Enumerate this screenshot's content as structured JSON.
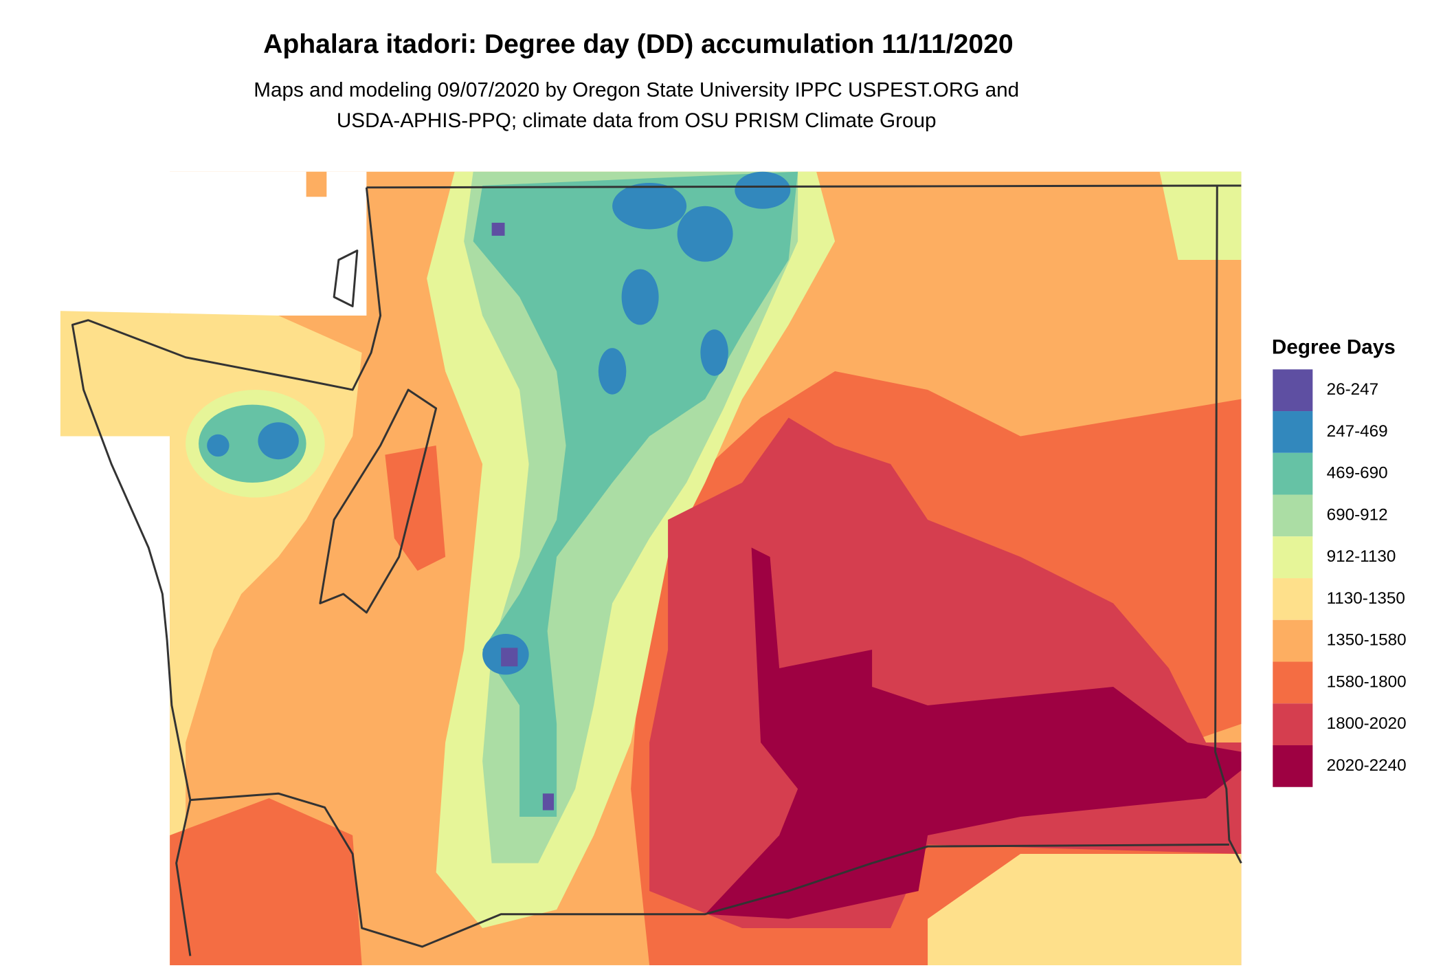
{
  "header": {
    "title": "Aphalara itadori: Degree day (DD) accumulation 11/11/2020",
    "subtitle": [
      "Maps and modeling 09/07/2020 by Oregon State University IPPC USPEST.ORG and",
      "USDA-APHIS-PPQ; climate data from OSU PRISM Climate Group"
    ]
  },
  "legend": {
    "title": "Degree Days",
    "items": [
      {
        "label": "26-247",
        "color": "#5e4fa2"
      },
      {
        "label": "247-469",
        "color": "#3288bd"
      },
      {
        "label": "469-690",
        "color": "#66c2a5"
      },
      {
        "label": "690-912",
        "color": "#abdda4"
      },
      {
        "label": "912-1130",
        "color": "#e6f598"
      },
      {
        "label": "1130-1350",
        "color": "#fee08b"
      },
      {
        "label": "1350-1580",
        "color": "#fdae61"
      },
      {
        "label": "1580-1800",
        "color": "#f46d43"
      },
      {
        "label": "1800-2020",
        "color": "#d53e4f"
      },
      {
        "label": "2020-2240",
        "color": "#9e0142"
      }
    ]
  }
}
